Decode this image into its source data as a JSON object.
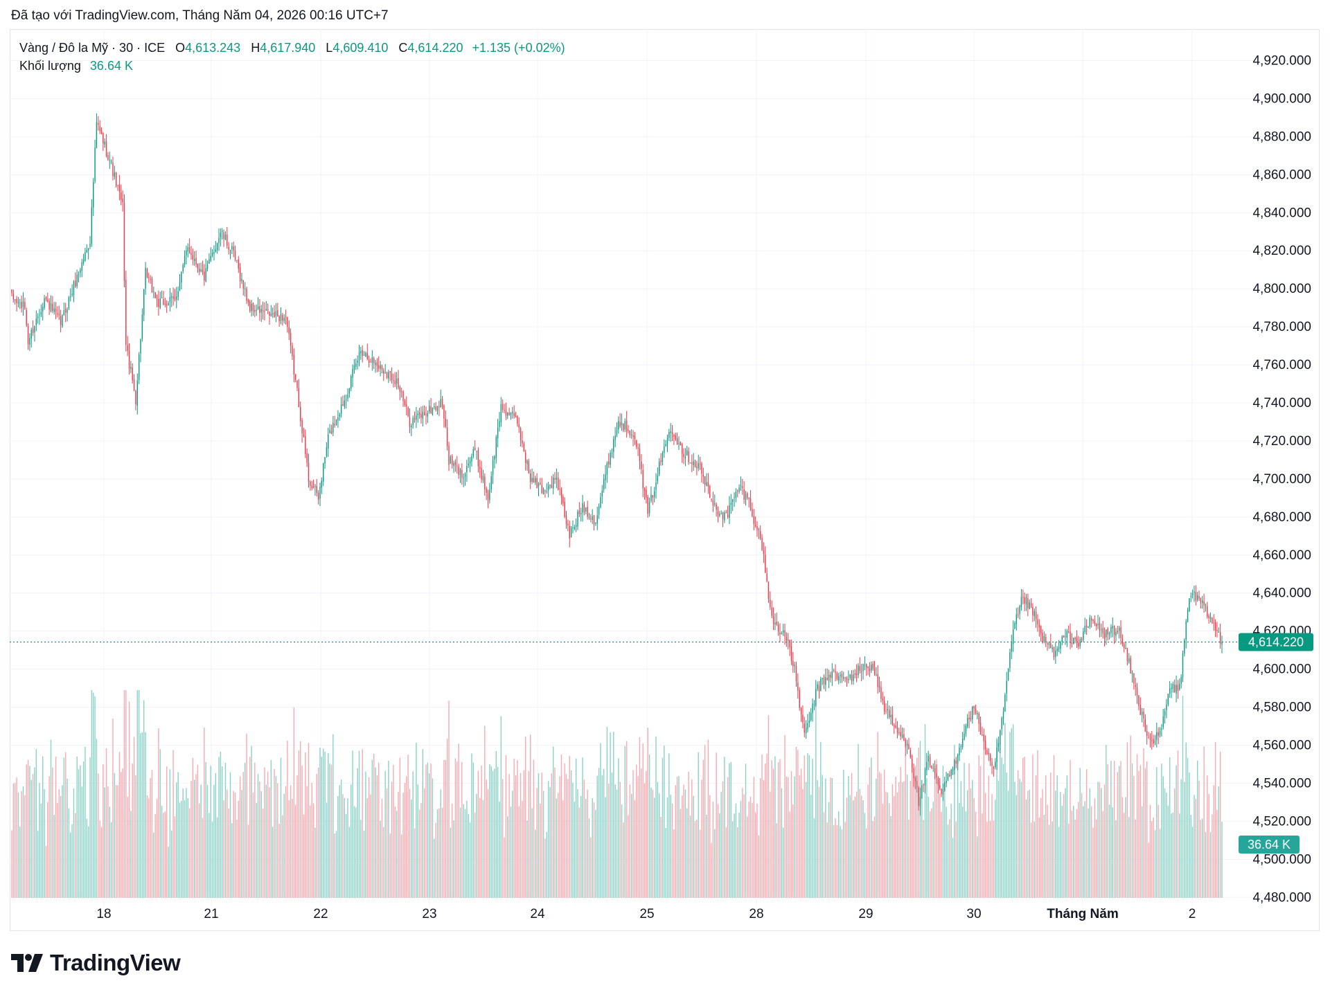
{
  "header": {
    "caption": "Đã tạo với TradingView.com, Tháng Năm 04, 2026 00:16 UTC+7"
  },
  "legend": {
    "symbol": "Vàng / Đô la Mỹ · 30 · ICE",
    "open_label": "O",
    "open": "4,613.243",
    "high_label": "H",
    "high": "4,617.940",
    "low_label": "L",
    "low": "4,609.410",
    "close_label": "C",
    "close": "4,614.220",
    "change": "+1.135 (+0.02%)",
    "volume_label": "Khối lượng",
    "volume": "36.64 K"
  },
  "last_price_tag": "4,614.220",
  "volume_tag": "36.64 K",
  "brand": {
    "name": "TradingView"
  },
  "colors": {
    "up": "#089981",
    "down": "#f23645",
    "up_vol": "#8ad2c6",
    "down_vol": "#f9aab0",
    "grid": "#f0f3fa"
  },
  "chart_data": {
    "type": "candlestick",
    "interval": "30",
    "y_axis": {
      "ticks": [
        "4,920.000",
        "4,900.000",
        "4,880.000",
        "4,860.000",
        "4,840.000",
        "4,820.000",
        "4,800.000",
        "4,780.000",
        "4,760.000",
        "4,740.000",
        "4,720.000",
        "4,700.000",
        "4,680.000",
        "4,660.000",
        "4,640.000",
        "4,620.000",
        "4,600.000",
        "4,580.000",
        "4,560.000",
        "4,540.000",
        "4,520.000",
        "4,500.000",
        "4,480.000"
      ],
      "range": [
        4475,
        4930
      ]
    },
    "x_axis": {
      "ticks": [
        "18",
        "21",
        "22",
        "23",
        "24",
        "25",
        "28",
        "29",
        "30",
        "Tháng Năm",
        "2"
      ]
    },
    "last_price": 4614.22,
    "last_volume": 36.64,
    "keypoints": [
      {
        "t": 0,
        "price": 4795
      },
      {
        "t": 8,
        "price": 4790
      },
      {
        "t": 10,
        "price": 4772
      },
      {
        "t": 20,
        "price": 4795
      },
      {
        "t": 30,
        "price": 4782
      },
      {
        "t": 40,
        "price": 4806
      },
      {
        "t": 48,
        "price": 4826
      },
      {
        "t": 52,
        "price": 4887
      },
      {
        "t": 60,
        "price": 4868
      },
      {
        "t": 68,
        "price": 4843
      },
      {
        "t": 70,
        "price": 4770
      },
      {
        "t": 76,
        "price": 4742
      },
      {
        "t": 82,
        "price": 4808
      },
      {
        "t": 90,
        "price": 4792
      },
      {
        "t": 100,
        "price": 4794
      },
      {
        "t": 108,
        "price": 4822
      },
      {
        "t": 118,
        "price": 4806
      },
      {
        "t": 128,
        "price": 4830
      },
      {
        "t": 136,
        "price": 4818
      },
      {
        "t": 146,
        "price": 4790
      },
      {
        "t": 160,
        "price": 4786
      },
      {
        "t": 168,
        "price": 4785
      },
      {
        "t": 176,
        "price": 4740
      },
      {
        "t": 182,
        "price": 4700
      },
      {
        "t": 188,
        "price": 4690
      },
      {
        "t": 194,
        "price": 4722
      },
      {
        "t": 204,
        "price": 4742
      },
      {
        "t": 214,
        "price": 4768
      },
      {
        "t": 224,
        "price": 4760
      },
      {
        "t": 236,
        "price": 4752
      },
      {
        "t": 244,
        "price": 4730
      },
      {
        "t": 256,
        "price": 4736
      },
      {
        "t": 264,
        "price": 4740
      },
      {
        "t": 268,
        "price": 4710
      },
      {
        "t": 276,
        "price": 4702
      },
      {
        "t": 284,
        "price": 4715
      },
      {
        "t": 292,
        "price": 4690
      },
      {
        "t": 300,
        "price": 4738
      },
      {
        "t": 310,
        "price": 4730
      },
      {
        "t": 318,
        "price": 4700
      },
      {
        "t": 326,
        "price": 4694
      },
      {
        "t": 334,
        "price": 4700
      },
      {
        "t": 342,
        "price": 4670
      },
      {
        "t": 350,
        "price": 4686
      },
      {
        "t": 358,
        "price": 4678
      },
      {
        "t": 366,
        "price": 4710
      },
      {
        "t": 372,
        "price": 4730
      },
      {
        "t": 382,
        "price": 4724
      },
      {
        "t": 390,
        "price": 4682
      },
      {
        "t": 398,
        "price": 4710
      },
      {
        "t": 404,
        "price": 4728
      },
      {
        "t": 412,
        "price": 4714
      },
      {
        "t": 422,
        "price": 4706
      },
      {
        "t": 430,
        "price": 4686
      },
      {
        "t": 438,
        "price": 4680
      },
      {
        "t": 446,
        "price": 4696
      },
      {
        "t": 452,
        "price": 4688
      },
      {
        "t": 460,
        "price": 4665
      },
      {
        "t": 466,
        "price": 4626
      },
      {
        "t": 474,
        "price": 4618
      },
      {
        "t": 480,
        "price": 4600
      },
      {
        "t": 486,
        "price": 4564
      },
      {
        "t": 494,
        "price": 4590
      },
      {
        "t": 502,
        "price": 4598
      },
      {
        "t": 512,
        "price": 4594
      },
      {
        "t": 520,
        "price": 4600
      },
      {
        "t": 528,
        "price": 4602
      },
      {
        "t": 534,
        "price": 4582
      },
      {
        "t": 542,
        "price": 4568
      },
      {
        "t": 550,
        "price": 4560
      },
      {
        "t": 556,
        "price": 4530
      },
      {
        "t": 562,
        "price": 4552
      },
      {
        "t": 570,
        "price": 4535
      },
      {
        "t": 578,
        "price": 4550
      },
      {
        "t": 584,
        "price": 4568
      },
      {
        "t": 590,
        "price": 4580
      },
      {
        "t": 596,
        "price": 4562
      },
      {
        "t": 602,
        "price": 4545
      },
      {
        "t": 608,
        "price": 4578
      },
      {
        "t": 614,
        "price": 4620
      },
      {
        "t": 620,
        "price": 4638
      },
      {
        "t": 626,
        "price": 4630
      },
      {
        "t": 632,
        "price": 4616
      },
      {
        "t": 640,
        "price": 4608
      },
      {
        "t": 646,
        "price": 4618
      },
      {
        "t": 654,
        "price": 4614
      },
      {
        "t": 662,
        "price": 4626
      },
      {
        "t": 670,
        "price": 4618
      },
      {
        "t": 678,
        "price": 4622
      },
      {
        "t": 686,
        "price": 4600
      },
      {
        "t": 692,
        "price": 4578
      },
      {
        "t": 698,
        "price": 4562
      },
      {
        "t": 704,
        "price": 4565
      },
      {
        "t": 710,
        "price": 4590
      },
      {
        "t": 716,
        "price": 4590
      },
      {
        "t": 722,
        "price": 4640
      },
      {
        "t": 728,
        "price": 4636
      },
      {
        "t": 734,
        "price": 4628
      },
      {
        "t": 742,
        "price": 4614.22
      }
    ]
  }
}
